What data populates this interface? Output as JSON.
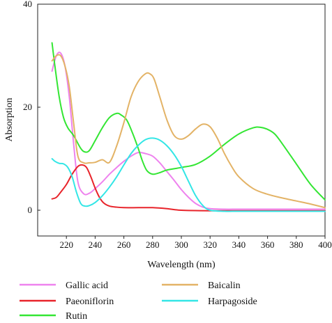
{
  "chart_data": {
    "type": "line",
    "title": "",
    "xlabel": "Wavelength (nm)",
    "ylabel": "Absorption",
    "xlim": [
      200,
      400
    ],
    "ylim": [
      -5,
      40
    ],
    "xticks": [
      220,
      240,
      260,
      280,
      300,
      320,
      340,
      360,
      380,
      400
    ],
    "yticks": [
      0,
      20,
      40
    ],
    "grid": false,
    "legend_position": "bottom",
    "series": [
      {
        "name": "Gallic acid",
        "color": "#ee82ee",
        "x": [
          210,
          213,
          216,
          219,
          222,
          225,
          228,
          232,
          236,
          240,
          245,
          250,
          255,
          260,
          265,
          270,
          275,
          280,
          285,
          290,
          295,
          300,
          305,
          310,
          315,
          320,
          330,
          340,
          360,
          380,
          400
        ],
        "y": [
          27,
          30,
          30.5,
          28,
          22,
          13,
          5.5,
          3.2,
          3.3,
          4.2,
          5.5,
          7,
          8.3,
          9.5,
          10.5,
          11.2,
          11,
          10.5,
          9.2,
          7.5,
          5.8,
          4,
          2.5,
          1.3,
          0.6,
          0.3,
          0.2,
          0.2,
          0.2,
          0.2,
          0.2
        ]
      },
      {
        "name": "Paeoniflorin",
        "color": "#e8232a",
        "x": [
          210,
          213,
          216,
          220,
          224,
          228,
          231,
          234,
          237,
          240,
          243,
          246,
          250,
          255,
          260,
          270,
          280,
          290,
          300,
          320,
          340,
          360,
          380,
          400
        ],
        "y": [
          2.2,
          2.5,
          3.5,
          5,
          7,
          8.5,
          8.8,
          8.3,
          6.5,
          4.3,
          2.5,
          1.4,
          0.8,
          0.6,
          0.5,
          0.5,
          0.5,
          0.3,
          0,
          -0.1,
          -0.1,
          -0.1,
          -0.1,
          -0.1
        ]
      },
      {
        "name": "Rutin",
        "color": "#33e633",
        "x": [
          210,
          212,
          215,
          218,
          221,
          225,
          230,
          233,
          236,
          240,
          245,
          250,
          255,
          258,
          262,
          266,
          270,
          273,
          276,
          280,
          285,
          290,
          300,
          310,
          320,
          330,
          340,
          350,
          355,
          360,
          365,
          370,
          380,
          390,
          400
        ],
        "y": [
          32.5,
          28,
          22,
          18,
          16,
          14.5,
          12,
          11.3,
          11.6,
          13.5,
          16,
          18,
          18.8,
          18.5,
          17.5,
          15,
          12,
          9.5,
          7.7,
          7,
          7.3,
          7.8,
          8.3,
          8.9,
          10.5,
          12.8,
          14.8,
          16,
          16.1,
          15.7,
          14.8,
          13,
          9,
          5,
          2
        ]
      },
      {
        "name": "Baicalin",
        "color": "#e3b366",
        "x": [
          210,
          213,
          216,
          219,
          222,
          225,
          228,
          232,
          236,
          240,
          245,
          250,
          255,
          260,
          265,
          270,
          275,
          278,
          281,
          285,
          290,
          295,
          300,
          305,
          310,
          315,
          320,
          325,
          330,
          335,
          340,
          350,
          360,
          370,
          380,
          390,
          400
        ],
        "y": [
          29,
          30,
          30,
          28,
          24,
          17,
          10.5,
          9.2,
          9.2,
          9.3,
          9.8,
          9.3,
          12.5,
          17,
          22,
          25,
          26.5,
          26.5,
          25.5,
          22,
          17.5,
          14.5,
          13.8,
          14.5,
          15.8,
          16.7,
          16.2,
          14,
          11,
          8.5,
          6.5,
          4.2,
          3.1,
          2.4,
          1.8,
          1.2,
          0.5
        ]
      },
      {
        "name": "Harpagoside",
        "color": "#33e6e6",
        "x": [
          210,
          212,
          215,
          218,
          221,
          224,
          227,
          230,
          233,
          236,
          240,
          245,
          250,
          255,
          260,
          265,
          270,
          275,
          280,
          285,
          290,
          295,
          300,
          305,
          310,
          315,
          320,
          330,
          340,
          360,
          380,
          400
        ],
        "y": [
          10,
          9.5,
          9.1,
          9,
          8.3,
          6.5,
          3.5,
          1.3,
          0.8,
          0.9,
          1.5,
          2.8,
          4.5,
          6.5,
          8.8,
          11,
          12.6,
          13.7,
          14,
          13.6,
          12.5,
          10.8,
          8.5,
          5.6,
          2.8,
          0.9,
          0,
          -0.2,
          -0.2,
          -0.2,
          -0.2,
          -0.2
        ]
      }
    ]
  }
}
